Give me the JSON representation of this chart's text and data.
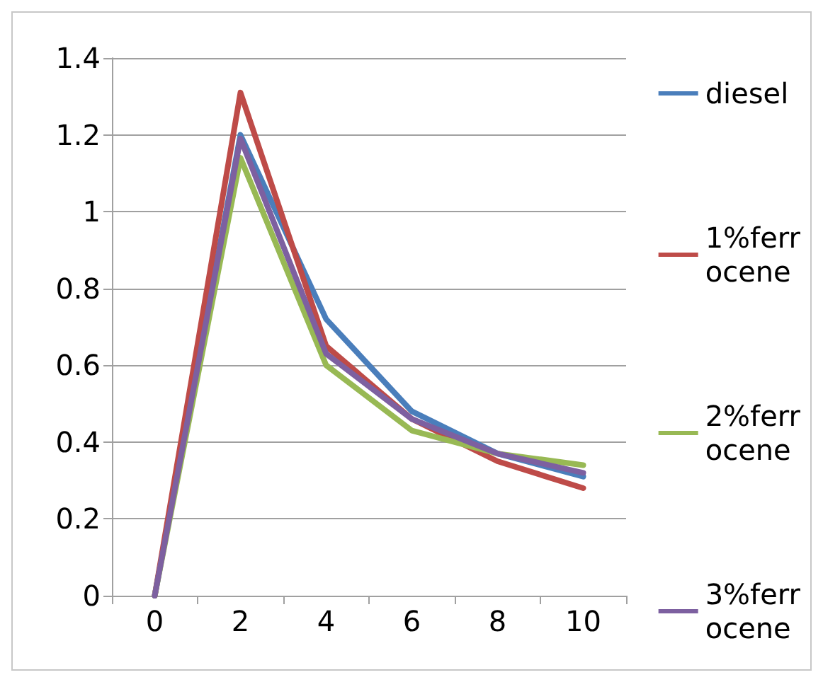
{
  "chart_data": {
    "type": "line",
    "categories": [
      "0",
      "2",
      "4",
      "6",
      "8",
      "10"
    ],
    "series": [
      {
        "name": "diesel",
        "color": "#4a7ebb",
        "values": [
          0,
          1.2,
          0.72,
          0.48,
          0.37,
          0.31
        ]
      },
      {
        "name": "1%ferrocene",
        "color": "#be4b48",
        "values": [
          0,
          1.31,
          0.65,
          0.46,
          0.35,
          0.28
        ]
      },
      {
        "name": "2%ferrocene",
        "color": "#98b954",
        "values": [
          0,
          1.14,
          0.6,
          0.43,
          0.37,
          0.34
        ]
      },
      {
        "name": "3%ferrocene",
        "color": "#7d60a0",
        "values": [
          0,
          1.19,
          0.63,
          0.46,
          0.37,
          0.32
        ]
      }
    ],
    "ylim": [
      0,
      1.4
    ],
    "yticks": [
      0,
      0.2,
      0.4,
      0.6,
      0.8,
      1,
      1.2,
      1.4
    ],
    "grid": "y",
    "legend": "right",
    "marker": "none",
    "line_style": "solid"
  }
}
